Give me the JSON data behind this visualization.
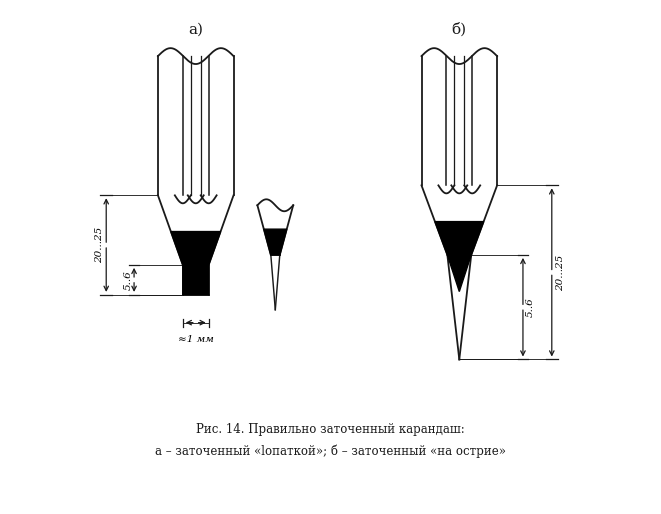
{
  "title_a": "а)",
  "title_b": "б)",
  "caption_line1": "Рис. 14. Правильно заточенный карандаш:",
  "caption_line2": "а – заточенный «lопаткой»; б – заточенный «на острие»",
  "bg_color": "#ffffff",
  "line_color": "#1a1a1a",
  "dim_label_56_a": "5..6",
  "dim_label_2025_a": "20...25",
  "dim_label_1mm": "≈1 мм",
  "dim_label_56_b": "5..6",
  "dim_label_2025_b": "20...25"
}
